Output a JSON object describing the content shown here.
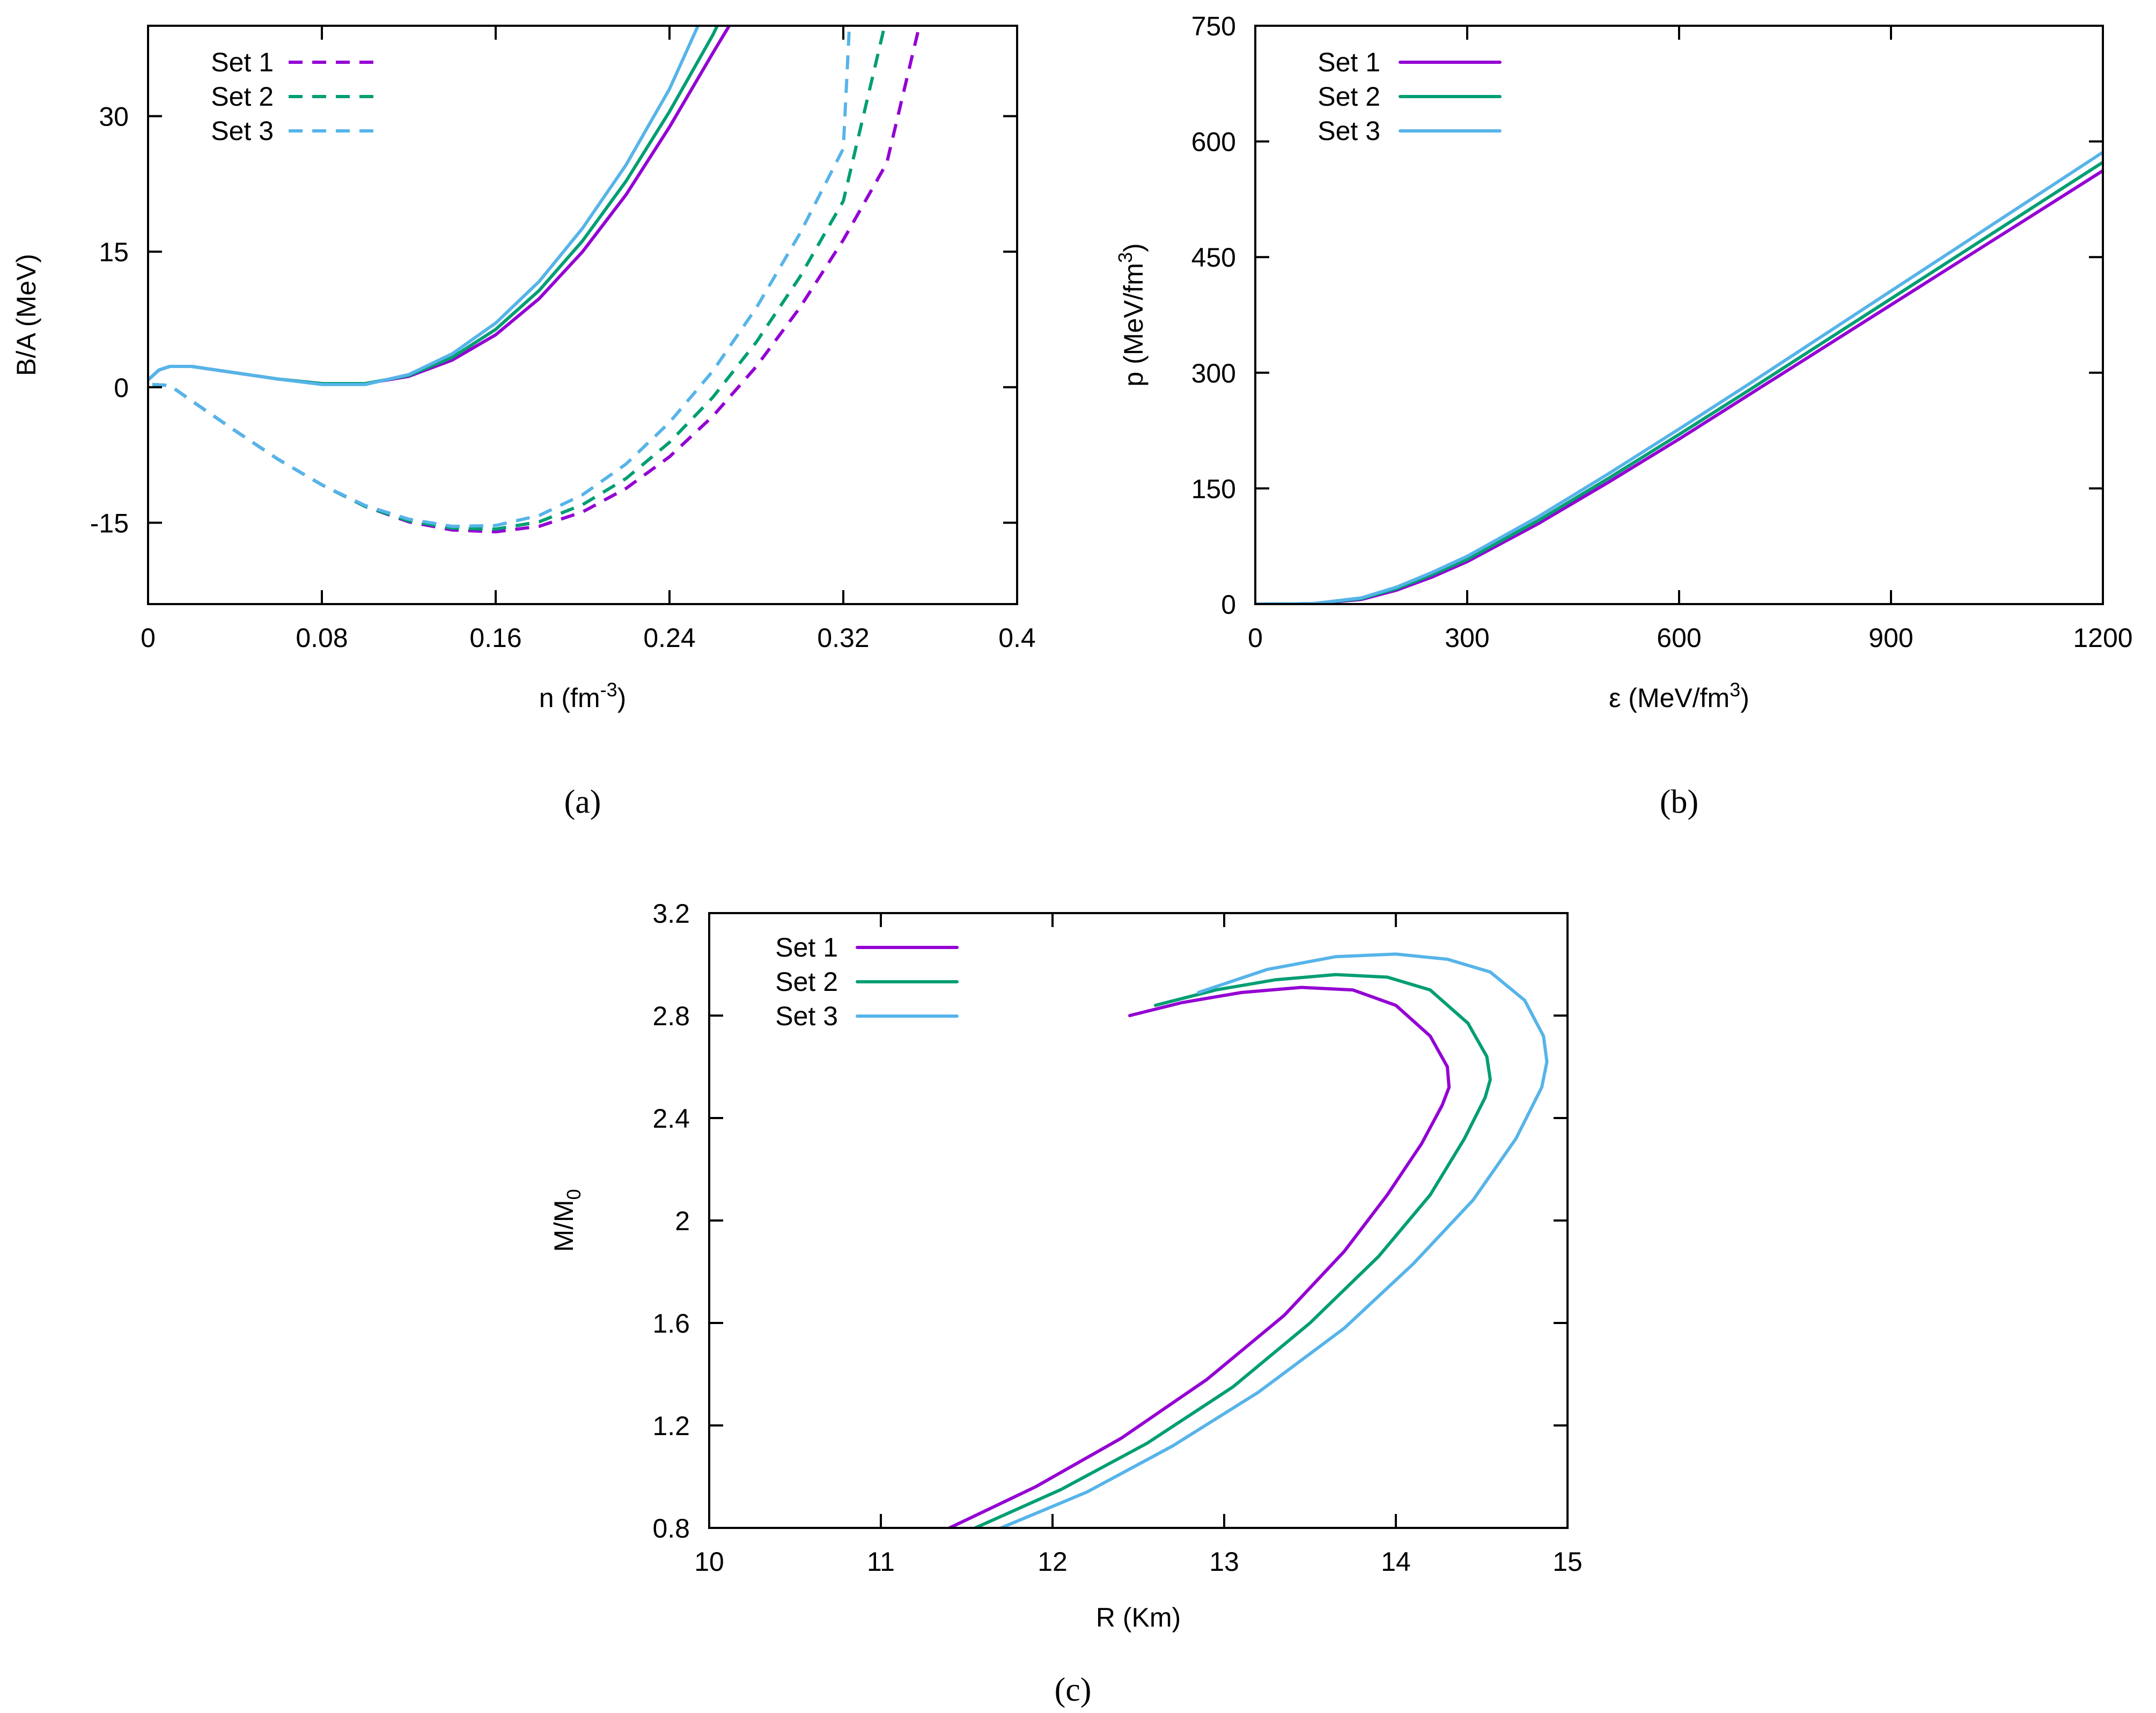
{
  "colors": {
    "set1": "#9400d3",
    "set2": "#009e73",
    "set3": "#56b4e9"
  },
  "chart_data": [
    {
      "id": "a",
      "type": "line",
      "caption": "(a)",
      "xlabel": "n  (fm",
      "xlabel_sup": "-3",
      "xlabel_tail": ")",
      "ylabel": "B/A  (MeV)",
      "xlim": [
        0,
        0.4
      ],
      "ylim": [
        -24,
        40
      ],
      "xticks": [
        0,
        0.08,
        0.16,
        0.24,
        0.32,
        0.4
      ],
      "xtick_labels": [
        "0",
        "0.08",
        "0.16",
        "0.24",
        "0.32",
        "0.4"
      ],
      "yticks": [
        -15,
        0,
        15,
        30
      ],
      "ytick_labels": [
        "-15",
        "0",
        "15",
        "30"
      ],
      "legend": {
        "position": "top-left",
        "style": "dashed",
        "entries": [
          "Set 1",
          "Set 2",
          "Set 3"
        ]
      },
      "series": [
        {
          "name": "Set 1",
          "color_key": "set1",
          "style": "solid",
          "x": [
            0.0,
            0.005,
            0.01,
            0.02,
            0.04,
            0.06,
            0.08,
            0.1,
            0.12,
            0.14,
            0.16,
            0.18,
            0.2,
            0.22,
            0.24,
            0.26,
            0.27
          ],
          "y": [
            0.8,
            1.9,
            2.3,
            2.3,
            1.6,
            0.9,
            0.4,
            0.4,
            1.2,
            3.0,
            5.8,
            9.8,
            15.0,
            21.3,
            28.8,
            37.0,
            41.0
          ]
        },
        {
          "name": "Set 2",
          "color_key": "set2",
          "style": "solid",
          "x": [
            0.0,
            0.005,
            0.01,
            0.02,
            0.04,
            0.06,
            0.08,
            0.1,
            0.12,
            0.14,
            0.16,
            0.18,
            0.2,
            0.22,
            0.24,
            0.26,
            0.264
          ],
          "y": [
            0.8,
            1.9,
            2.3,
            2.3,
            1.6,
            0.9,
            0.4,
            0.4,
            1.3,
            3.3,
            6.4,
            10.7,
            16.2,
            22.8,
            30.5,
            39.0,
            41.0
          ]
        },
        {
          "name": "Set 3",
          "color_key": "set3",
          "style": "solid",
          "x": [
            0.0,
            0.005,
            0.01,
            0.02,
            0.04,
            0.06,
            0.08,
            0.1,
            0.12,
            0.14,
            0.16,
            0.18,
            0.2,
            0.22,
            0.24,
            0.255
          ],
          "y": [
            0.8,
            1.9,
            2.3,
            2.3,
            1.6,
            0.9,
            0.3,
            0.3,
            1.4,
            3.7,
            7.1,
            11.7,
            17.6,
            24.6,
            33.0,
            41.0
          ]
        },
        {
          "name": "Set 1",
          "color_key": "set1",
          "style": "dashed",
          "x": [
            0.002,
            0.01,
            0.02,
            0.04,
            0.06,
            0.08,
            0.1,
            0.12,
            0.14,
            0.16,
            0.18,
            0.2,
            0.22,
            0.24,
            0.26,
            0.28,
            0.3,
            0.32,
            0.34,
            0.356
          ],
          "y": [
            0.3,
            0.2,
            -1.5,
            -4.8,
            -8.0,
            -10.8,
            -13.2,
            -14.9,
            -15.8,
            -16.0,
            -15.4,
            -13.8,
            -11.2,
            -7.7,
            -3.2,
            2.3,
            8.8,
            16.3,
            24.8,
            41.0
          ]
        },
        {
          "name": "Set 2",
          "color_key": "set2",
          "style": "dashed",
          "x": [
            0.002,
            0.01,
            0.02,
            0.04,
            0.06,
            0.08,
            0.1,
            0.12,
            0.14,
            0.16,
            0.18,
            0.2,
            0.22,
            0.24,
            0.26,
            0.28,
            0.3,
            0.32,
            0.34
          ],
          "y": [
            0.3,
            0.2,
            -1.5,
            -4.8,
            -8.0,
            -10.8,
            -13.2,
            -14.8,
            -15.6,
            -15.7,
            -14.9,
            -13.0,
            -10.1,
            -6.1,
            -1.1,
            5.0,
            12.2,
            20.6,
            41.0
          ]
        },
        {
          "name": "Set 3",
          "color_key": "set3",
          "style": "dashed",
          "x": [
            0.002,
            0.01,
            0.02,
            0.04,
            0.06,
            0.08,
            0.1,
            0.12,
            0.14,
            0.16,
            0.18,
            0.2,
            0.22,
            0.24,
            0.26,
            0.28,
            0.3,
            0.32,
            0.323
          ],
          "y": [
            0.3,
            0.2,
            -1.5,
            -4.8,
            -8.0,
            -10.8,
            -13.1,
            -14.6,
            -15.4,
            -15.3,
            -14.2,
            -11.9,
            -8.5,
            -3.9,
            1.8,
            8.8,
            17.0,
            26.4,
            41.0
          ]
        }
      ]
    },
    {
      "id": "b",
      "type": "line",
      "caption": "(b)",
      "xlabel": "ε  (MeV/fm",
      "xlabel_sup": "3",
      "xlabel_tail": ")",
      "ylabel": "p  (MeV/fm",
      "ylabel_sup": "3",
      "ylabel_tail": ")",
      "xlim": [
        0,
        1200
      ],
      "ylim": [
        0,
        750
      ],
      "xticks": [
        0,
        300,
        600,
        900,
        1200
      ],
      "xtick_labels": [
        "0",
        "300",
        "600",
        "900",
        "1200"
      ],
      "yticks": [
        0,
        150,
        300,
        450,
        600,
        750
      ],
      "ytick_labels": [
        "0",
        "150",
        "300",
        "450",
        "600",
        "750"
      ],
      "legend": {
        "position": "top-left",
        "style": "solid",
        "entries": [
          "Set 1",
          "Set 2",
          "Set 3"
        ]
      },
      "series": [
        {
          "name": "Set 1",
          "color_key": "set1",
          "style": "solid",
          "x": [
            0,
            80,
            150,
            200,
            250,
            300,
            400,
            500,
            600,
            700,
            800,
            900,
            1000,
            1100,
            1200
          ],
          "y": [
            0,
            0.5,
            6,
            18,
            35,
            55,
            104,
            158,
            214,
            272,
            330,
            388,
            446,
            504,
            562
          ]
        },
        {
          "name": "Set 2",
          "color_key": "set2",
          "style": "solid",
          "x": [
            0,
            80,
            150,
            200,
            250,
            300,
            400,
            500,
            600,
            700,
            800,
            900,
            1000,
            1100,
            1200
          ],
          "y": [
            0,
            0.5,
            7,
            20,
            38,
            58,
            108,
            163,
            220,
            278,
            337,
            396,
            455,
            514,
            573
          ]
        },
        {
          "name": "Set 3",
          "color_key": "set3",
          "style": "solid",
          "x": [
            0,
            80,
            150,
            200,
            250,
            300,
            400,
            500,
            600,
            700,
            800,
            900,
            1000,
            1100,
            1200
          ],
          "y": [
            0,
            0.5,
            8,
            22,
            41,
            62,
            113,
            169,
            227,
            286,
            346,
            406,
            466,
            526,
            586
          ]
        }
      ]
    },
    {
      "id": "c",
      "type": "line",
      "caption": "(c)",
      "xlabel": "R  (Km)",
      "ylabel": "M/M",
      "ylabel_sub": "0",
      "xlim": [
        10,
        15
      ],
      "ylim": [
        0.8,
        3.2
      ],
      "xticks": [
        10,
        11,
        12,
        13,
        14,
        15
      ],
      "xtick_labels": [
        "10",
        "11",
        "12",
        "13",
        "14",
        "15"
      ],
      "yticks": [
        0.8,
        1.2,
        1.6,
        2.0,
        2.4,
        2.8,
        3.2
      ],
      "ytick_labels": [
        "0.8",
        "1.2",
        "1.6",
        "2",
        "2.4",
        "2.8",
        "3.2"
      ],
      "legend": {
        "position": "top-left",
        "style": "solid",
        "entries": [
          "Set 1",
          "Set 2",
          "Set 3"
        ]
      },
      "series": [
        {
          "name": "Set 1",
          "color_key": "set1",
          "style": "solid",
          "x": [
            11.4,
            11.9,
            12.4,
            12.9,
            13.35,
            13.7,
            13.95,
            14.15,
            14.27,
            14.31,
            14.3,
            14.2,
            14.0,
            13.75,
            13.45,
            13.1,
            12.75,
            12.45
          ],
          "y": [
            0.8,
            0.96,
            1.15,
            1.38,
            1.63,
            1.88,
            2.1,
            2.3,
            2.45,
            2.52,
            2.6,
            2.72,
            2.84,
            2.9,
            2.91,
            2.89,
            2.85,
            2.8
          ]
        },
        {
          "name": "Set 2",
          "color_key": "set2",
          "style": "solid",
          "x": [
            11.55,
            12.05,
            12.55,
            13.05,
            13.5,
            13.9,
            14.2,
            14.4,
            14.52,
            14.55,
            14.53,
            14.42,
            14.2,
            13.95,
            13.65,
            13.3,
            12.95,
            12.6
          ],
          "y": [
            0.8,
            0.95,
            1.13,
            1.35,
            1.6,
            1.86,
            2.1,
            2.32,
            2.48,
            2.55,
            2.64,
            2.77,
            2.9,
            2.95,
            2.96,
            2.94,
            2.9,
            2.84
          ]
        },
        {
          "name": "Set 3",
          "color_key": "set3",
          "style": "solid",
          "x": [
            11.7,
            12.2,
            12.7,
            13.2,
            13.7,
            14.1,
            14.45,
            14.7,
            14.85,
            14.88,
            14.86,
            14.75,
            14.55,
            14.3,
            14.0,
            13.65,
            13.25,
            12.85
          ],
          "y": [
            0.8,
            0.94,
            1.12,
            1.33,
            1.58,
            1.83,
            2.08,
            2.32,
            2.52,
            2.62,
            2.72,
            2.86,
            2.97,
            3.02,
            3.04,
            3.03,
            2.98,
            2.89
          ]
        }
      ]
    }
  ]
}
